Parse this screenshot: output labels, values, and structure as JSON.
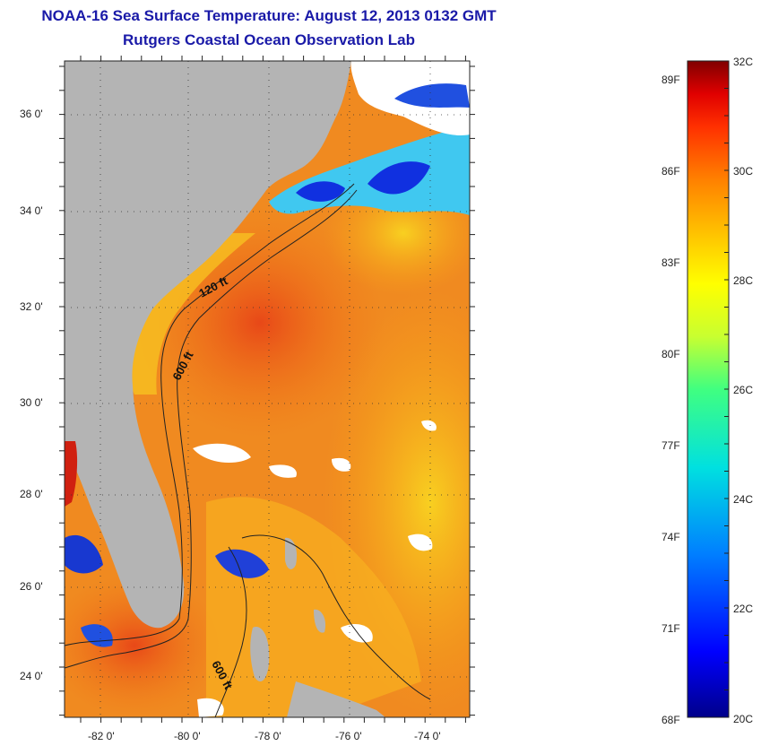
{
  "header": {
    "title": "NOAA-16 Sea Surface Temperature:  August 12, 2013 0132 GMT",
    "subtitle": "Rutgers Coastal Ocean Observation Lab"
  },
  "map": {
    "lat_ticks": [
      "36 0'",
      "34 0'",
      "32 0'",
      "30 0'",
      "28 0'",
      "26 0'",
      "24 0'"
    ],
    "lon_ticks": [
      "-82 0'",
      "-80 0'",
      "-78 0'",
      "-76 0'",
      "-74 0'"
    ],
    "contour_labels": {
      "shelf_120": "120 ft",
      "shelf_600_north": "600 ft",
      "shelf_600_south": "600 ft"
    },
    "colors": {
      "land": "#b4b4b4",
      "cloud": "#ffffff",
      "warm_ocean": "#f07818",
      "hot_ocean": "#e84818",
      "cool_ocean": "#f8c818"
    }
  },
  "colorbar": {
    "celsius_labels": [
      "32C",
      "30C",
      "28C",
      "26C",
      "24C",
      "22C",
      "20C"
    ],
    "fahrenheit_labels": [
      "89F",
      "86F",
      "83F",
      "80F",
      "77F",
      "74F",
      "71F",
      "68F"
    ],
    "range_celsius": [
      20,
      32
    ],
    "colormap": [
      "#00008a",
      "#0000ff",
      "#0080ff",
      "#00e0e0",
      "#40ff80",
      "#c8ff30",
      "#ffff00",
      "#ffc000",
      "#ff8000",
      "#ff3000",
      "#e00000",
      "#800000"
    ]
  }
}
